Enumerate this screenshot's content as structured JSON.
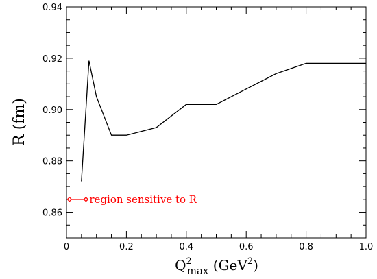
{
  "chart_data": {
    "type": "line",
    "xlabel": "Q²max (GeV²)",
    "ylabel": "R (fm)",
    "xlim": [
      0,
      1.0
    ],
    "ylim": [
      0.85,
      0.94
    ],
    "x_ticks": [
      "0",
      "0.2",
      "0.4",
      "0.6",
      "0.8",
      "1.0"
    ],
    "y_ticks": [
      "0.86",
      "0.88",
      "0.90",
      "0.92",
      "0.94"
    ],
    "grid": false,
    "series": [
      {
        "color": "#000000",
        "x": [
          0.05,
          0.075,
          0.1,
          0.15,
          0.2,
          0.3,
          0.4,
          0.5,
          0.6,
          0.7,
          0.8,
          1.0
        ],
        "y": [
          0.872,
          0.919,
          0.905,
          0.89,
          0.89,
          0.893,
          0.902,
          0.902,
          0.908,
          0.914,
          0.918,
          0.918
        ]
      }
    ],
    "annotation": {
      "text": "region sensitive to R",
      "color": "#ff0000",
      "range_x": [
        0.01,
        0.065
      ],
      "y": 0.865
    }
  }
}
